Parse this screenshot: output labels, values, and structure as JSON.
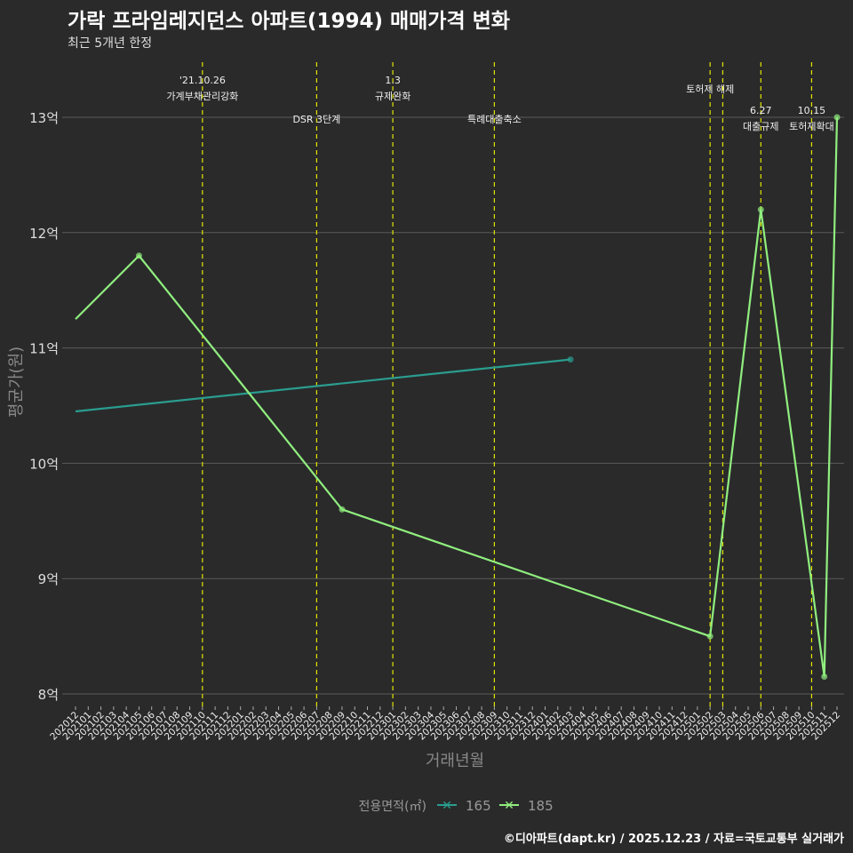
{
  "title": "가락 프라임레지던스 아파트(1994) 매매가격 변화",
  "subtitle": "최근 5개년 한정",
  "caption": "©디아파트(dapt.kr) / 2025.12.23 / 자료=국토교통부 실거래가",
  "chart_data": {
    "type": "line",
    "xlabel": "거래년월",
    "ylabel": "평균가(원)",
    "ylim": [
      8,
      13
    ],
    "yticks": [
      {
        "v": 8,
        "label": "8억"
      },
      {
        "v": 9,
        "label": "9억"
      },
      {
        "v": 10,
        "label": "10억"
      },
      {
        "v": 11,
        "label": "11억"
      },
      {
        "v": 12,
        "label": "12억"
      },
      {
        "v": 13,
        "label": "13억"
      }
    ],
    "x_start": "202012",
    "x_end": "202512",
    "legend": {
      "title": "전용면적(㎡)",
      "position": "bottom"
    },
    "series": [
      {
        "name": "165",
        "color": "#2a9d8f",
        "points": [
          [
            "202012",
            10.45
          ],
          [
            "202403",
            10.9
          ]
        ]
      },
      {
        "name": "185",
        "color": "#90ee7e",
        "points": [
          [
            "202012",
            11.25
          ],
          [
            "202105",
            11.8
          ],
          [
            "202209",
            9.6
          ],
          [
            "202502",
            8.5
          ],
          [
            "202506",
            12.2
          ],
          [
            "202511",
            8.15
          ],
          [
            "202512",
            13.0
          ]
        ]
      }
    ],
    "events": [
      {
        "x": "202110",
        "lines": [
          "'21.10.26",
          "가계부채관리강화"
        ],
        "row": 0
      },
      {
        "x": "202207",
        "lines": [
          "DSR 3단계"
        ],
        "row": 2
      },
      {
        "x": "202301",
        "lines": [
          "1.3",
          "규제완화"
        ],
        "row": 0
      },
      {
        "x": "202309",
        "lines": [
          "특례대출축소"
        ],
        "row": 2
      },
      {
        "x": "202502",
        "lines": [
          "토허제 해제"
        ],
        "row": 1,
        "offset": 0
      },
      {
        "x": "202503",
        "lines": [],
        "row": 1
      },
      {
        "x": "202506",
        "lines": [
          "6.27",
          "대출규제"
        ],
        "row": 3
      },
      {
        "x": "202510",
        "lines": [
          "10.15",
          "토허제확대"
        ],
        "row": 3
      }
    ]
  }
}
